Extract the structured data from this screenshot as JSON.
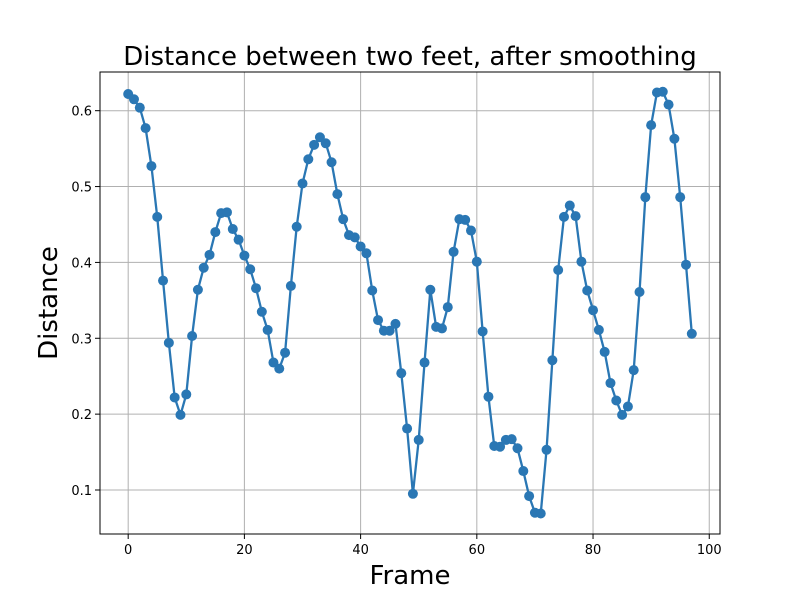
{
  "chart_data": {
    "type": "line",
    "title": "Distance between two feet, after smoothing",
    "xlabel": "Frame",
    "ylabel": "Distance",
    "xlim": [
      -4.85,
      101.85
    ],
    "ylim": [
      0.042,
      0.651
    ],
    "xticks": [
      0,
      20,
      40,
      60,
      80,
      100
    ],
    "yticks": [
      0.1,
      0.2,
      0.3,
      0.4,
      0.5,
      0.6
    ],
    "grid": true,
    "markers": true,
    "color": "#2a77b4",
    "series": [
      {
        "x": [
          0,
          1,
          2,
          3,
          4,
          5,
          6,
          7,
          8,
          9,
          10,
          11,
          12,
          13,
          14,
          15,
          16,
          17,
          18,
          19,
          20,
          21,
          22,
          23,
          24,
          25,
          26,
          27,
          28,
          29,
          30,
          31,
          32,
          33,
          34,
          35,
          36,
          37,
          38,
          39,
          40,
          41,
          42,
          43,
          44,
          45,
          46,
          47,
          48,
          49,
          50,
          51,
          52,
          53,
          54,
          55,
          56,
          57,
          58,
          59,
          60,
          61,
          62,
          63,
          64,
          65,
          66,
          67,
          68,
          69,
          70,
          71,
          72,
          73,
          74,
          75,
          76,
          77,
          78,
          79,
          80,
          81,
          82,
          83,
          84,
          85,
          86,
          87,
          88,
          89,
          90,
          91,
          92,
          93,
          94,
          95,
          96,
          97
        ],
        "values": [
          0.622,
          0.615,
          0.604,
          0.577,
          0.527,
          0.46,
          0.376,
          0.294,
          0.222,
          0.199,
          0.226,
          0.303,
          0.364,
          0.393,
          0.41,
          0.44,
          0.465,
          0.466,
          0.444,
          0.43,
          0.409,
          0.391,
          0.366,
          0.335,
          0.311,
          0.268,
          0.26,
          0.281,
          0.369,
          0.447,
          0.504,
          0.536,
          0.555,
          0.565,
          0.557,
          0.532,
          0.49,
          0.457,
          0.436,
          0.433,
          0.421,
          0.412,
          0.363,
          0.324,
          0.31,
          0.31,
          0.319,
          0.254,
          0.181,
          0.095,
          0.166,
          0.268,
          0.364,
          0.315,
          0.313,
          0.341,
          0.414,
          0.457,
          0.456,
          0.442,
          0.401,
          0.309,
          0.223,
          0.158,
          0.157,
          0.166,
          0.167,
          0.155,
          0.125,
          0.092,
          0.07,
          0.069,
          0.153,
          0.271,
          0.39,
          0.46,
          0.475,
          0.461,
          0.401,
          0.363,
          0.337,
          0.311,
          0.282,
          0.241,
          0.218,
          0.199,
          0.21,
          0.258,
          0.361,
          0.486,
          0.581,
          0.624,
          0.625,
          0.608,
          0.563,
          0.486,
          0.397,
          0.306
        ]
      }
    ]
  }
}
